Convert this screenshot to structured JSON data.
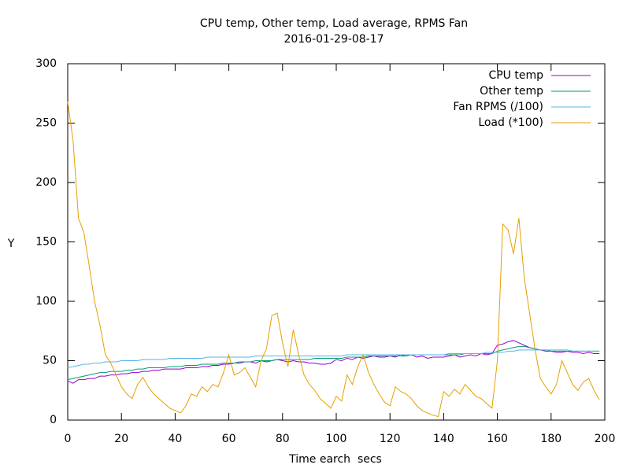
{
  "chart_data": {
    "type": "line",
    "title": "CPU temp, Other temp, Load average, RPMS Fan",
    "subtitle": "2016-01-29-08-17",
    "xlabel": "Time earch  secs",
    "ylabel": "Y",
    "xlim": [
      0,
      200
    ],
    "ylim": [
      0,
      300
    ],
    "xticks": [
      0,
      20,
      40,
      60,
      80,
      100,
      120,
      140,
      160,
      180,
      200
    ],
    "yticks": [
      0,
      50,
      100,
      150,
      200,
      250,
      300
    ],
    "legend": "top-right",
    "x": [
      0,
      2,
      4,
      6,
      8,
      10,
      12,
      14,
      16,
      18,
      20,
      22,
      24,
      26,
      28,
      30,
      32,
      34,
      36,
      38,
      40,
      42,
      44,
      46,
      48,
      50,
      52,
      54,
      56,
      58,
      60,
      62,
      64,
      66,
      68,
      70,
      72,
      74,
      76,
      78,
      80,
      82,
      84,
      86,
      88,
      90,
      92,
      94,
      96,
      98,
      100,
      102,
      104,
      106,
      108,
      110,
      112,
      114,
      116,
      118,
      120,
      122,
      124,
      126,
      128,
      130,
      132,
      134,
      136,
      138,
      140,
      142,
      144,
      146,
      148,
      150,
      152,
      154,
      156,
      158,
      160,
      162,
      164,
      166,
      168,
      170,
      172,
      174,
      176,
      178,
      180,
      182,
      184,
      186,
      188,
      190,
      192,
      194,
      196,
      198
    ],
    "series": [
      {
        "name": "CPU temp",
        "color": "#9400d3",
        "values": [
          33,
          31,
          34,
          34,
          35,
          35,
          37,
          37,
          38,
          38,
          39,
          39,
          40,
          40,
          41,
          41,
          42,
          42,
          43,
          43,
          43,
          43,
          44,
          44,
          44,
          45,
          45,
          46,
          46,
          47,
          47,
          48,
          48,
          49,
          49,
          48,
          50,
          49,
          50,
          51,
          50,
          49,
          50,
          49,
          49,
          48,
          48,
          47,
          47,
          48,
          51,
          50,
          52,
          51,
          53,
          52,
          53,
          54,
          53,
          53,
          54,
          53,
          55,
          54,
          55,
          53,
          54,
          52,
          53,
          53,
          53,
          54,
          55,
          53,
          54,
          55,
          54,
          56,
          55,
          56,
          63,
          64,
          66,
          67,
          65,
          63,
          61,
          60,
          59,
          58,
          58,
          57,
          57,
          58,
          57,
          57,
          56,
          57,
          56,
          56
        ]
      },
      {
        "name": "Other temp",
        "color": "#009e73",
        "values": [
          34,
          35,
          36,
          37,
          38,
          39,
          40,
          40,
          41,
          41,
          41,
          42,
          42,
          43,
          43,
          44,
          44,
          44,
          44,
          45,
          45,
          45,
          46,
          46,
          46,
          47,
          47,
          47,
          47,
          48,
          48,
          48,
          49,
          49,
          49,
          50,
          50,
          50,
          50,
          51,
          51,
          51,
          51,
          51,
          51,
          51,
          52,
          52,
          52,
          52,
          52,
          52,
          53,
          53,
          53,
          53,
          54,
          54,
          54,
          54,
          54,
          54,
          54,
          54,
          55,
          55,
          55,
          55,
          55,
          55,
          55,
          55,
          55,
          55,
          56,
          56,
          56,
          56,
          56,
          56,
          58,
          59,
          60,
          61,
          62,
          62,
          61,
          60,
          59,
          59,
          58,
          58,
          58,
          58,
          58,
          58,
          58,
          58,
          58,
          58
        ]
      },
      {
        "name": "Fan RPMS (/100)",
        "color": "#56b4e9",
        "values": [
          44,
          45,
          46,
          47,
          47,
          48,
          48,
          49,
          49,
          49,
          50,
          50,
          50,
          50,
          51,
          51,
          51,
          51,
          51,
          52,
          52,
          52,
          52,
          52,
          52,
          52,
          53,
          53,
          53,
          53,
          53,
          53,
          53,
          53,
          53,
          54,
          54,
          54,
          54,
          54,
          54,
          54,
          54,
          54,
          54,
          54,
          54,
          54,
          54,
          54,
          54,
          54,
          55,
          55,
          55,
          55,
          55,
          55,
          55,
          55,
          55,
          55,
          55,
          55,
          55,
          55,
          55,
          55,
          55,
          55,
          55,
          56,
          56,
          56,
          56,
          56,
          56,
          56,
          57,
          57,
          57,
          57,
          58,
          58,
          59,
          59,
          59,
          59,
          59,
          59,
          59,
          59,
          59,
          59,
          58,
          58,
          58,
          58,
          58,
          58
        ]
      },
      {
        "name": "Load (*100)",
        "color": "#e69f00",
        "values": [
          268,
          235,
          170,
          158,
          130,
          100,
          80,
          55,
          48,
          38,
          28,
          22,
          18,
          30,
          36,
          28,
          22,
          18,
          14,
          10,
          8,
          6,
          12,
          22,
          20,
          28,
          24,
          30,
          28,
          40,
          55,
          38,
          40,
          44,
          36,
          28,
          50,
          60,
          88,
          90,
          65,
          45,
          76,
          55,
          38,
          30,
          25,
          18,
          14,
          10,
          20,
          16,
          38,
          30,
          45,
          55,
          40,
          30,
          22,
          15,
          12,
          28,
          24,
          22,
          18,
          12,
          8,
          6,
          4,
          3,
          24,
          20,
          26,
          22,
          30,
          25,
          20,
          18,
          14,
          10,
          50,
          165,
          160,
          140,
          170,
          120,
          90,
          60,
          35,
          28,
          22,
          30,
          50,
          40,
          30,
          25,
          32,
          35,
          25,
          17
        ]
      }
    ]
  }
}
